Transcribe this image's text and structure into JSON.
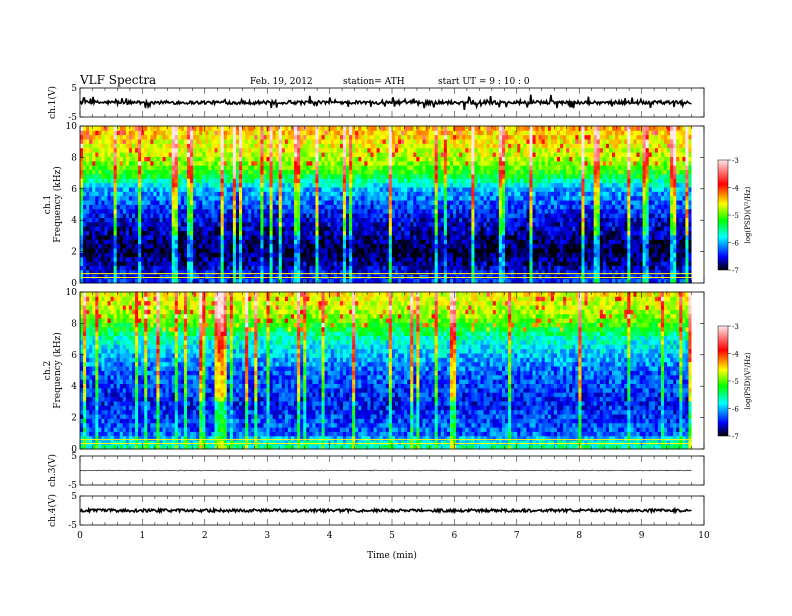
{
  "header": {
    "title": "VLF  Spectra",
    "date": "Feb. 19, 2012",
    "station": "station= ATH",
    "start": "start  UT  =   9  : 10 : 0"
  },
  "colorbar": {
    "label": "log(PSD)(V²/Hz)",
    "ticks": [
      "-3",
      "-4",
      "-5",
      "-6",
      "-7"
    ],
    "colors": [
      "#ffe8e8",
      "#ff0000",
      "#ffff00",
      "#00ff00",
      "#00ffff",
      "#0000ff",
      "#000000"
    ]
  },
  "chart_data": [
    {
      "type": "line",
      "panel": "ch1-waveform",
      "ylabel": "ch.1(V)",
      "yticks": [
        "5",
        "-5"
      ],
      "ylim": [
        -5,
        5
      ],
      "xlim": [
        0,
        10
      ],
      "duration_min": 9.8,
      "baseline_v": 0,
      "noise_amplitude_v": 0.6,
      "spike_amplitude_v": 2.5
    },
    {
      "type": "heatmap",
      "panel": "ch1-spectrogram",
      "ylabel": "ch.1\nFrequency (kHz)",
      "ylim": [
        0,
        10
      ],
      "yticks": [
        "10",
        "8",
        "6",
        "4",
        "2",
        "0"
      ],
      "xlim": [
        0,
        10
      ],
      "zlabel": "log(PSD)(V²/Hz)",
      "zlim": [
        -7,
        -3
      ],
      "profile": [
        {
          "freq_khz": 0.0,
          "log_psd": -6.4
        },
        {
          "freq_khz": 2.0,
          "log_psd": -6.9
        },
        {
          "freq_khz": 4.0,
          "log_psd": -6.6
        },
        {
          "freq_khz": 6.0,
          "log_psd": -6.1
        },
        {
          "freq_khz": 7.0,
          "log_psd": -5.3
        },
        {
          "freq_khz": 8.0,
          "log_psd": -4.9
        },
        {
          "freq_khz": 10.0,
          "log_psd": -4.5
        }
      ]
    },
    {
      "type": "heatmap",
      "panel": "ch2-spectrogram",
      "ylabel": "ch.2\nFrequency (kHz)",
      "ylim": [
        0,
        10
      ],
      "yticks": [
        "10",
        "8",
        "6",
        "4",
        "2",
        "0"
      ],
      "xlim": [
        0,
        10
      ],
      "zlabel": "log(PSD)(V²/Hz)",
      "zlim": [
        -7,
        -3
      ],
      "profile": [
        {
          "freq_khz": 0.0,
          "log_psd": -5.6
        },
        {
          "freq_khz": 1.0,
          "log_psd": -6.3
        },
        {
          "freq_khz": 3.0,
          "log_psd": -6.5
        },
        {
          "freq_khz": 5.0,
          "log_psd": -6.3
        },
        {
          "freq_khz": 7.0,
          "log_psd": -5.8
        },
        {
          "freq_khz": 8.5,
          "log_psd": -5.0
        },
        {
          "freq_khz": 10.0,
          "log_psd": -4.7
        }
      ]
    },
    {
      "type": "line",
      "panel": "ch3-waveform",
      "ylabel": "ch.3(V)",
      "yticks": [
        "5",
        "-5"
      ],
      "ylim": [
        -5,
        5
      ],
      "xlim": [
        0,
        10
      ],
      "duration_min": 9.8,
      "baseline_v": 0,
      "noise_amplitude_v": 0.15
    },
    {
      "type": "line",
      "panel": "ch4-waveform",
      "ylabel": "ch.4(V)",
      "yticks": [
        "5",
        "-5"
      ],
      "ylim": [
        -5,
        5
      ],
      "xlim": [
        0,
        10
      ],
      "duration_min": 9.8,
      "baseline_v": 0,
      "noise_amplitude_v": 0.5,
      "xlabel": "Time  (min)",
      "xticks": [
        "0",
        "1",
        "2",
        "3",
        "4",
        "5",
        "6",
        "7",
        "8",
        "9",
        "10"
      ]
    }
  ]
}
